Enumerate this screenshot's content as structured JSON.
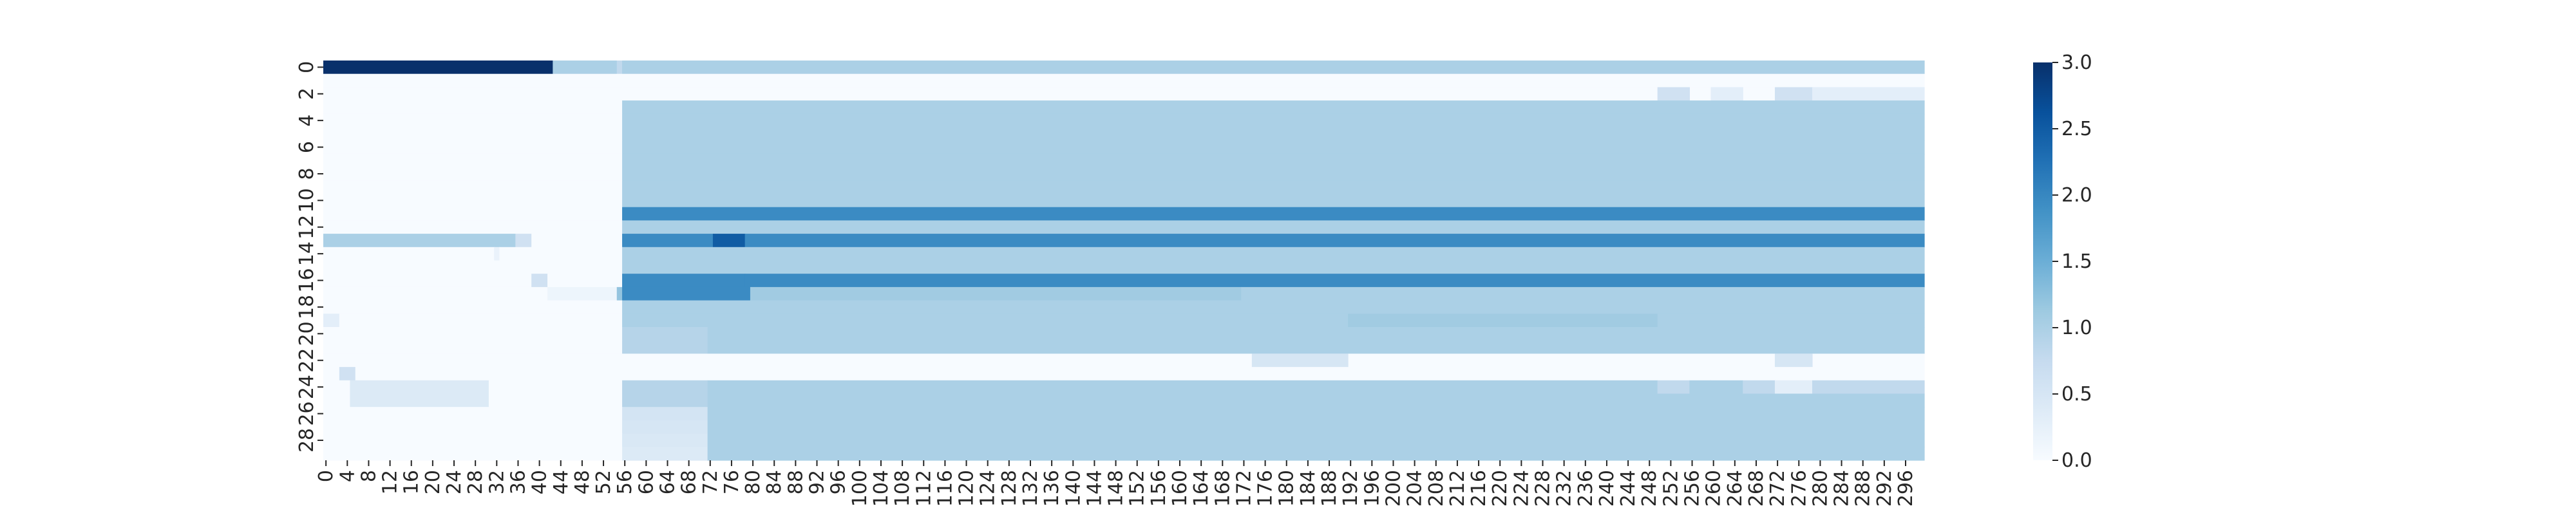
{
  "chart_data": {
    "type": "heatmap",
    "colormap": "Blues",
    "color_range": [
      0,
      3
    ],
    "n_rows": 30,
    "n_cols": 300,
    "x_tick_step": 4,
    "y_tick_step": 2,
    "colorbar": {
      "ticks": [
        "0.0",
        "0.5",
        "1.0",
        "1.5",
        "2.0",
        "2.5",
        "3.0"
      ],
      "values": [
        0,
        0.5,
        1.0,
        1.5,
        2.0,
        2.5,
        3.0
      ]
    },
    "row_segments": [
      [
        [
          0,
          43,
          3.0
        ],
        [
          43,
          55,
          1.0
        ],
        [
          55,
          56,
          0.8
        ],
        [
          56,
          300,
          1.0
        ]
      ],
      [
        [
          0,
          300,
          0.0
        ]
      ],
      [
        [
          0,
          56,
          0.0
        ],
        [
          56,
          300,
          0.0
        ],
        [
          250,
          256,
          0.6
        ],
        [
          260,
          266,
          0.3
        ],
        [
          272,
          279,
          0.6
        ],
        [
          279,
          300,
          0.3
        ]
      ],
      [
        [
          0,
          56,
          0.0
        ],
        [
          56,
          300,
          1.0
        ]
      ],
      [
        [
          0,
          56,
          0.0
        ],
        [
          56,
          300,
          1.0
        ]
      ],
      [
        [
          0,
          56,
          0.0
        ],
        [
          56,
          300,
          1.0
        ]
      ],
      [
        [
          0,
          56,
          0.0
        ],
        [
          56,
          300,
          1.0
        ]
      ],
      [
        [
          0,
          56,
          0.0
        ],
        [
          56,
          300,
          1.0
        ]
      ],
      [
        [
          0,
          56,
          0.0
        ],
        [
          56,
          300,
          1.0
        ]
      ],
      [
        [
          0,
          56,
          0.0
        ],
        [
          56,
          300,
          1.0
        ]
      ],
      [
        [
          0,
          56,
          0.0
        ],
        [
          56,
          300,
          1.0
        ]
      ],
      [
        [
          0,
          56,
          0.0
        ],
        [
          56,
          300,
          1.95
        ]
      ],
      [
        [
          0,
          56,
          0.0
        ],
        [
          56,
          300,
          1.0
        ]
      ],
      [
        [
          0,
          36,
          1.0
        ],
        [
          36,
          39,
          0.6
        ],
        [
          39,
          56,
          0.0
        ],
        [
          56,
          73,
          1.95
        ],
        [
          73,
          79,
          2.5
        ],
        [
          79,
          300,
          1.95
        ]
      ],
      [
        [
          0,
          32,
          0.0
        ],
        [
          32,
          33,
          0.2
        ],
        [
          33,
          56,
          0.0
        ],
        [
          56,
          300,
          1.0
        ]
      ],
      [
        [
          0,
          56,
          0.0
        ],
        [
          56,
          300,
          1.0
        ]
      ],
      [
        [
          0,
          39,
          0.0
        ],
        [
          39,
          42,
          0.6
        ],
        [
          42,
          56,
          0.0
        ],
        [
          56,
          79,
          1.95
        ],
        [
          79,
          300,
          1.95
        ]
      ],
      [
        [
          0,
          42,
          0.0
        ],
        [
          42,
          55,
          0.15
        ],
        [
          55,
          56,
          1.2
        ],
        [
          56,
          80,
          1.95
        ],
        [
          80,
          172,
          1.1
        ],
        [
          172,
          300,
          1.0
        ]
      ],
      [
        [
          0,
          56,
          0.0
        ],
        [
          56,
          300,
          1.0
        ]
      ],
      [
        [
          0,
          3,
          0.3
        ],
        [
          3,
          56,
          0.0
        ],
        [
          56,
          72,
          1.0
        ],
        [
          72,
          192,
          1.0
        ],
        [
          192,
          250,
          1.1
        ],
        [
          250,
          300,
          1.0
        ]
      ],
      [
        [
          0,
          56,
          0.0
        ],
        [
          56,
          72,
          0.9
        ],
        [
          72,
          300,
          1.0
        ]
      ],
      [
        [
          0,
          56,
          0.0
        ],
        [
          56,
          72,
          0.9
        ],
        [
          72,
          300,
          1.0
        ]
      ],
      [
        [
          0,
          56,
          0.0
        ],
        [
          56,
          300,
          0.0
        ],
        [
          174,
          192,
          0.5
        ],
        [
          272,
          279,
          0.5
        ]
      ],
      [
        [
          0,
          3,
          0.0
        ],
        [
          3,
          6,
          0.6
        ],
        [
          6,
          56,
          0.0
        ],
        [
          56,
          300,
          0.0
        ]
      ],
      [
        [
          0,
          5,
          0.0
        ],
        [
          5,
          31,
          0.4
        ],
        [
          31,
          56,
          0.0
        ],
        [
          56,
          72,
          0.9
        ],
        [
          72,
          250,
          1.0
        ],
        [
          250,
          256,
          0.8
        ],
        [
          256,
          260,
          1.0
        ],
        [
          260,
          266,
          1.0
        ],
        [
          266,
          272,
          0.8
        ],
        [
          272,
          279,
          0.3
        ],
        [
          279,
          300,
          0.8
        ]
      ],
      [
        [
          0,
          5,
          0.0
        ],
        [
          5,
          31,
          0.4
        ],
        [
          31,
          56,
          0.0
        ],
        [
          56,
          72,
          0.9
        ],
        [
          72,
          300,
          1.0
        ]
      ],
      [
        [
          0,
          56,
          0.0
        ],
        [
          56,
          72,
          0.55
        ],
        [
          72,
          300,
          1.0
        ]
      ],
      [
        [
          0,
          56,
          0.0
        ],
        [
          56,
          72,
          0.5
        ],
        [
          72,
          300,
          1.0
        ]
      ],
      [
        [
          0,
          56,
          0.0
        ],
        [
          56,
          72,
          0.45
        ],
        [
          72,
          300,
          1.0
        ]
      ],
      [
        [
          0,
          56,
          0.0
        ],
        [
          56,
          72,
          0.4
        ],
        [
          72,
          300,
          1.0
        ]
      ]
    ]
  }
}
